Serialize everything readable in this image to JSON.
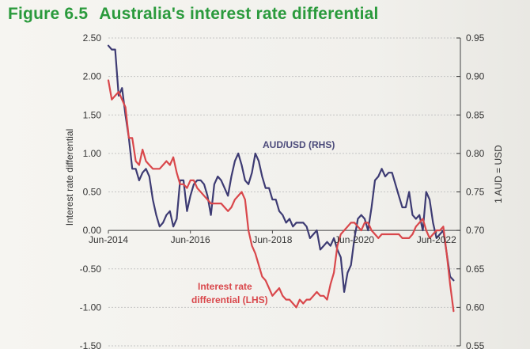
{
  "figure": {
    "number": "Figure 6.5",
    "title": "Australia's interest rate differential"
  },
  "chart_data": {
    "type": "line",
    "title": "Figure 6.5 Australia's interest rate differential",
    "ylabel_left": "Interest rate differential",
    "ylabel_right": "1 AUD = USD",
    "ylim_left": [
      -1.5,
      2.5
    ],
    "ylim_right": [
      0.55,
      0.95
    ],
    "yticks_left": [
      "2.50",
      "2.00",
      "1.50",
      "1.00",
      "0.50",
      "0.00",
      "-0.50",
      "-1.00",
      "-1.50"
    ],
    "yticks_right": [
      "0.95",
      "0.90",
      "0.85",
      "0.80",
      "0.75",
      "0.70",
      "0.65",
      "0.60",
      "0.55"
    ],
    "xlim": [
      "2014-06",
      "2023-01"
    ],
    "xticks": [
      {
        "label": "Jun-2014",
        "date": "2014-06"
      },
      {
        "label": "Jun-2016",
        "date": "2016-06"
      },
      {
        "label": "Jun-2018",
        "date": "2018-06"
      },
      {
        "label": "Jun-2020",
        "date": "2020-06"
      },
      {
        "label": "Jun-2022",
        "date": "2022-06"
      }
    ],
    "grid": "horizontal dashed",
    "annotations": {
      "aud": "AUD/USD (RHS)",
      "ir_line1": "Interest rate",
      "ir_line2": "differential (LHS)"
    },
    "series": [
      {
        "name": "AUD/USD (RHS)",
        "axis": "right",
        "color": "#3d3b73",
        "x": [
          "2014-06",
          "2014-07",
          "2014-08",
          "2014-09",
          "2014-10",
          "2014-11",
          "2014-12",
          "2015-01",
          "2015-02",
          "2015-03",
          "2015-04",
          "2015-05",
          "2015-06",
          "2015-07",
          "2015-08",
          "2015-09",
          "2015-10",
          "2015-11",
          "2015-12",
          "2016-01",
          "2016-02",
          "2016-03",
          "2016-04",
          "2016-05",
          "2016-06",
          "2016-07",
          "2016-08",
          "2016-09",
          "2016-10",
          "2016-11",
          "2016-12",
          "2017-01",
          "2017-02",
          "2017-03",
          "2017-04",
          "2017-05",
          "2017-06",
          "2017-07",
          "2017-08",
          "2017-09",
          "2017-10",
          "2017-11",
          "2017-12",
          "2018-01",
          "2018-02",
          "2018-03",
          "2018-04",
          "2018-05",
          "2018-06",
          "2018-07",
          "2018-08",
          "2018-09",
          "2018-10",
          "2018-11",
          "2018-12",
          "2019-01",
          "2019-02",
          "2019-03",
          "2019-04",
          "2019-05",
          "2019-06",
          "2019-07",
          "2019-08",
          "2019-09",
          "2019-10",
          "2019-11",
          "2019-12",
          "2020-01",
          "2020-02",
          "2020-03",
          "2020-04",
          "2020-05",
          "2020-06",
          "2020-07",
          "2020-08",
          "2020-09",
          "2020-10",
          "2020-11",
          "2020-12",
          "2021-01",
          "2021-02",
          "2021-03",
          "2021-04",
          "2021-05",
          "2021-06",
          "2021-07",
          "2021-08",
          "2021-09",
          "2021-10",
          "2021-11",
          "2021-12",
          "2022-01",
          "2022-02",
          "2022-03",
          "2022-04",
          "2022-05",
          "2022-06",
          "2022-07",
          "2022-08",
          "2022-09",
          "2022-10",
          "2022-11"
        ],
        "values": [
          0.94,
          0.935,
          0.935,
          0.875,
          0.885,
          0.85,
          0.82,
          0.78,
          0.78,
          0.765,
          0.775,
          0.78,
          0.77,
          0.74,
          0.72,
          0.705,
          0.71,
          0.72,
          0.725,
          0.705,
          0.715,
          0.765,
          0.765,
          0.725,
          0.745,
          0.76,
          0.765,
          0.765,
          0.76,
          0.745,
          0.72,
          0.76,
          0.77,
          0.765,
          0.755,
          0.745,
          0.77,
          0.79,
          0.8,
          0.785,
          0.765,
          0.76,
          0.775,
          0.8,
          0.79,
          0.77,
          0.755,
          0.755,
          0.74,
          0.74,
          0.725,
          0.72,
          0.71,
          0.715,
          0.705,
          0.71,
          0.71,
          0.71,
          0.705,
          0.69,
          0.695,
          0.7,
          0.675,
          0.68,
          0.685,
          0.68,
          0.69,
          0.675,
          0.665,
          0.62,
          0.645,
          0.655,
          0.69,
          0.715,
          0.72,
          0.715,
          0.7,
          0.73,
          0.765,
          0.77,
          0.78,
          0.77,
          0.775,
          0.775,
          0.76,
          0.745,
          0.73,
          0.73,
          0.75,
          0.72,
          0.715,
          0.72,
          0.7,
          0.75,
          0.74,
          0.71,
          0.69,
          0.695,
          0.7,
          0.67,
          0.64,
          0.635
        ]
      },
      {
        "name": "Interest rate differential (LHS)",
        "axis": "left",
        "color": "#d9474b",
        "x": [
          "2014-06",
          "2014-07",
          "2014-08",
          "2014-09",
          "2014-10",
          "2014-11",
          "2014-12",
          "2015-01",
          "2015-02",
          "2015-03",
          "2015-04",
          "2015-05",
          "2015-06",
          "2015-07",
          "2015-08",
          "2015-09",
          "2015-10",
          "2015-11",
          "2015-12",
          "2016-01",
          "2016-02",
          "2016-03",
          "2016-04",
          "2016-05",
          "2016-06",
          "2016-07",
          "2016-08",
          "2016-09",
          "2016-10",
          "2016-11",
          "2016-12",
          "2017-01",
          "2017-02",
          "2017-03",
          "2017-04",
          "2017-05",
          "2017-06",
          "2017-07",
          "2017-08",
          "2017-09",
          "2017-10",
          "2017-11",
          "2017-12",
          "2018-01",
          "2018-02",
          "2018-03",
          "2018-04",
          "2018-05",
          "2018-06",
          "2018-07",
          "2018-08",
          "2018-09",
          "2018-10",
          "2018-11",
          "2018-12",
          "2019-01",
          "2019-02",
          "2019-03",
          "2019-04",
          "2019-05",
          "2019-06",
          "2019-07",
          "2019-08",
          "2019-09",
          "2019-10",
          "2019-11",
          "2019-12",
          "2020-01",
          "2020-02",
          "2020-03",
          "2020-04",
          "2020-05",
          "2020-06",
          "2020-07",
          "2020-08",
          "2020-09",
          "2020-10",
          "2020-11",
          "2020-12",
          "2021-01",
          "2021-02",
          "2021-03",
          "2021-04",
          "2021-05",
          "2021-06",
          "2021-07",
          "2021-08",
          "2021-09",
          "2021-10",
          "2021-11",
          "2021-12",
          "2022-01",
          "2022-02",
          "2022-03",
          "2022-04",
          "2022-05",
          "2022-06",
          "2022-07",
          "2022-08",
          "2022-09",
          "2022-10",
          "2022-11"
        ],
        "values": [
          1.95,
          1.7,
          1.75,
          1.8,
          1.7,
          1.6,
          1.2,
          1.2,
          0.9,
          0.85,
          1.05,
          0.9,
          0.85,
          0.8,
          0.8,
          0.8,
          0.85,
          0.9,
          0.85,
          0.95,
          0.75,
          0.6,
          0.6,
          0.55,
          0.65,
          0.65,
          0.55,
          0.5,
          0.45,
          0.4,
          0.35,
          0.35,
          0.35,
          0.35,
          0.3,
          0.25,
          0.3,
          0.4,
          0.45,
          0.5,
          0.4,
          0.0,
          -0.2,
          -0.3,
          -0.45,
          -0.6,
          -0.65,
          -0.75,
          -0.85,
          -0.8,
          -0.75,
          -0.85,
          -0.9,
          -0.9,
          -0.95,
          -1.0,
          -0.9,
          -0.95,
          -0.9,
          -0.9,
          -0.85,
          -0.8,
          -0.85,
          -0.85,
          -0.9,
          -0.7,
          -0.55,
          -0.2,
          -0.05,
          0.0,
          0.05,
          0.1,
          0.1,
          0.05,
          0.0,
          0.1,
          0.1,
          0.0,
          -0.05,
          -0.1,
          -0.05,
          -0.05,
          -0.05,
          -0.05,
          -0.05,
          -0.05,
          -0.1,
          -0.1,
          -0.1,
          -0.05,
          0.05,
          0.1,
          0.15,
          0.0,
          -0.1,
          -0.05,
          0.0,
          0.0,
          0.05,
          -0.3,
          -0.7,
          -1.05
        ]
      }
    ]
  }
}
